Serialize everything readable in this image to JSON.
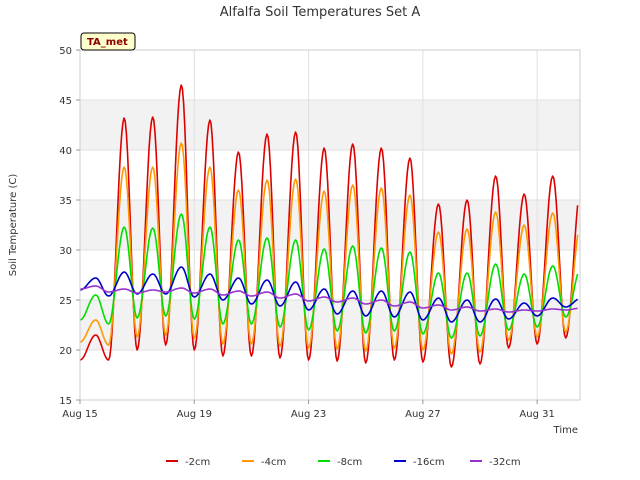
{
  "chart_data": {
    "type": "line",
    "title": "Alfalfa Soil Temperatures Set A",
    "xlabel": "Time",
    "ylabel": "Soil Temperature (C)",
    "badge": "TA_met",
    "xlim": [
      0,
      17.5
    ],
    "ylim": [
      15,
      50
    ],
    "x_ticks": [
      {
        "day": 0,
        "label": "Aug 15"
      },
      {
        "day": 4,
        "label": "Aug 19"
      },
      {
        "day": 8,
        "label": "Aug 23"
      },
      {
        "day": 12,
        "label": "Aug 27"
      },
      {
        "day": 16,
        "label": "Aug 31"
      }
    ],
    "y_ticks": [
      15,
      20,
      25,
      30,
      35,
      40,
      45,
      50
    ],
    "grid": true,
    "legend_position": "bottom",
    "daily_x": [
      0.3,
      1.3,
      2.3,
      3.3,
      4.3,
      5.3,
      6.3,
      7.3,
      8.3,
      9.3,
      10.3,
      11.3,
      12.3,
      13.3,
      14.3,
      15.3,
      16.3,
      17.3
    ],
    "series": [
      {
        "name": "-2cm",
        "color": "#dd0000",
        "daily_max": [
          21.5,
          43.2,
          43.3,
          46.5,
          43.0,
          39.8,
          41.6,
          41.8,
          40.2,
          40.6,
          40.2,
          39.2,
          34.6,
          35.0,
          37.4,
          35.6,
          37.4,
          36.6
        ],
        "daily_min": [
          19.0,
          19.0,
          20.0,
          20.5,
          20.0,
          19.4,
          19.4,
          19.2,
          19.0,
          18.9,
          18.7,
          19.0,
          18.8,
          18.3,
          18.6,
          20.2,
          20.6,
          21.2
        ]
      },
      {
        "name": "-4cm",
        "color": "#ff9900",
        "daily_max": [
          23.0,
          38.3,
          38.3,
          40.7,
          38.3,
          36.0,
          37.0,
          37.1,
          35.9,
          36.5,
          36.2,
          35.5,
          31.8,
          32.1,
          33.8,
          32.5,
          33.7,
          33.1
        ],
        "daily_min": [
          20.8,
          20.5,
          21.3,
          21.5,
          21.2,
          20.6,
          20.6,
          20.4,
          20.2,
          20.1,
          19.9,
          20.2,
          20.0,
          19.6,
          19.8,
          21.0,
          21.3,
          21.8
        ]
      },
      {
        "name": "-8cm",
        "color": "#00dd00",
        "daily_max": [
          25.5,
          32.3,
          32.2,
          33.6,
          32.3,
          31.0,
          31.2,
          31.0,
          30.1,
          30.4,
          30.2,
          29.8,
          27.7,
          27.7,
          28.6,
          27.6,
          28.4,
          28.3
        ],
        "daily_min": [
          23.0,
          22.6,
          23.2,
          23.4,
          23.1,
          22.6,
          22.6,
          22.3,
          22.0,
          21.9,
          21.7,
          21.9,
          21.6,
          21.2,
          21.4,
          22.0,
          22.3,
          23.3
        ]
      },
      {
        "name": "-16cm",
        "color": "#0000cc",
        "daily_max": [
          27.2,
          27.8,
          27.6,
          28.3,
          27.6,
          27.2,
          27.0,
          26.8,
          26.1,
          25.9,
          25.9,
          25.8,
          25.2,
          25.0,
          25.1,
          24.7,
          25.2,
          25.2
        ],
        "daily_min": [
          26.0,
          25.4,
          25.6,
          25.6,
          25.3,
          25.0,
          24.6,
          24.4,
          24.0,
          23.6,
          23.4,
          23.3,
          23.0,
          22.8,
          22.8,
          23.1,
          23.4,
          24.3
        ]
      },
      {
        "name": "-32cm",
        "color": "#9933cc",
        "daily_max": [
          26.4,
          26.1,
          26.0,
          26.2,
          26.1,
          25.9,
          25.8,
          25.6,
          25.3,
          25.2,
          25.0,
          24.8,
          24.5,
          24.3,
          24.1,
          24.0,
          24.1,
          24.2
        ],
        "daily_min": [
          26.1,
          25.8,
          25.7,
          25.8,
          25.7,
          25.5,
          25.4,
          25.2,
          24.9,
          24.8,
          24.6,
          24.4,
          24.2,
          24.0,
          23.9,
          23.8,
          23.9,
          24.0
        ]
      }
    ]
  }
}
